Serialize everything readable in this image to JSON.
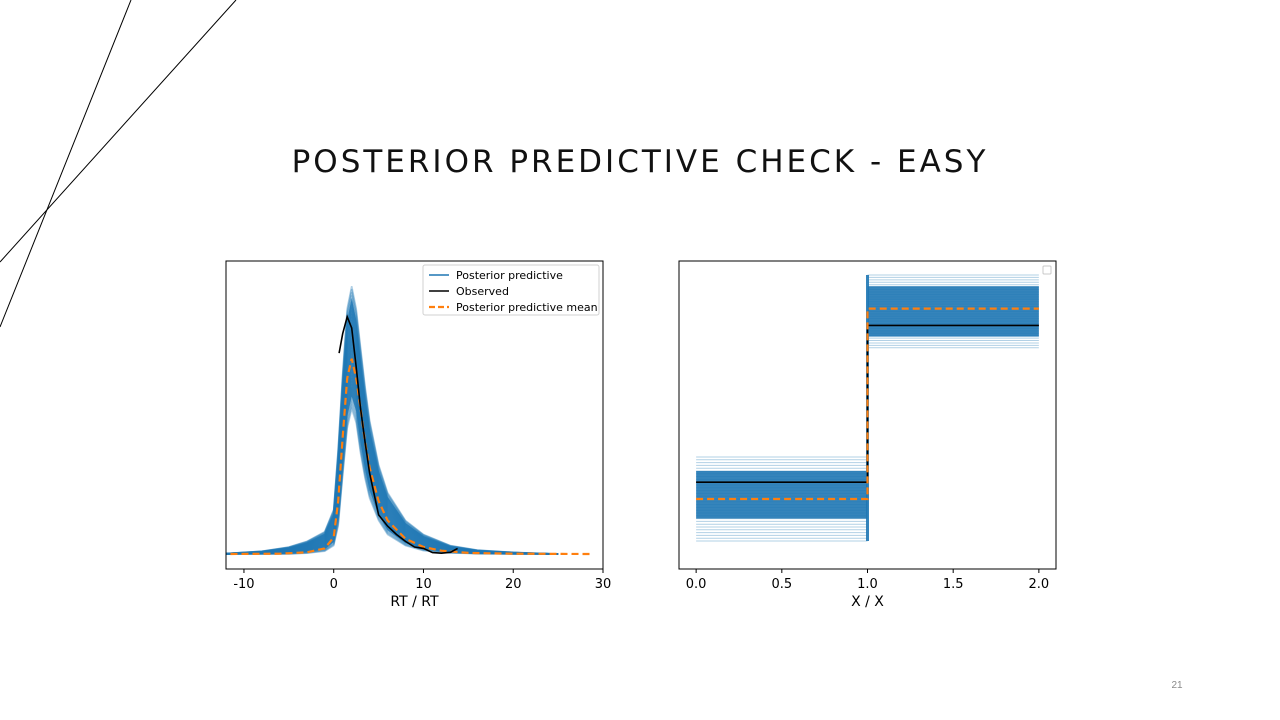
{
  "slide": {
    "title": "POSTERIOR PREDICTIVE CHECK - EASY",
    "page_number": "21"
  },
  "colors": {
    "posterior_predictive": "#1f77b4",
    "observed": "#000000",
    "posterior_mean": "#ff7f0e",
    "decoration_lines": "#000000"
  },
  "chart_data": [
    {
      "type": "line",
      "title": "",
      "xlabel": "RT / RT",
      "ylabel": "",
      "xlim": [
        -12,
        30
      ],
      "ylim": [
        0,
        1
      ],
      "x_ticks": [
        -10,
        0,
        10,
        20,
        30
      ],
      "grid": false,
      "legend": {
        "placement": "top-right",
        "entries": [
          "Posterior predictive",
          "Observed",
          "Posterior predictive mean"
        ]
      },
      "series": [
        {
          "name": "Posterior predictive mean",
          "style": "dashed",
          "x": [
            -11.5,
            -6,
            -3,
            -1,
            0,
            0.5,
            1,
            1.5,
            2,
            2.5,
            3,
            3.5,
            4,
            5,
            6,
            8,
            10,
            12,
            15,
            20,
            28.5
          ],
          "y": [
            0,
            0.001,
            0.006,
            0.02,
            0.06,
            0.19,
            0.42,
            0.63,
            0.7,
            0.63,
            0.52,
            0.4,
            0.31,
            0.19,
            0.12,
            0.055,
            0.025,
            0.012,
            0.004,
            0.001,
            0
          ]
        },
        {
          "name": "Observed",
          "style": "solid",
          "x": [
            0.6,
            1,
            1.5,
            2,
            2.5,
            3,
            3.5,
            4,
            5,
            6,
            7,
            8,
            9,
            10,
            11,
            12,
            13,
            13.8
          ],
          "y": [
            0.72,
            0.79,
            0.85,
            0.81,
            0.67,
            0.52,
            0.4,
            0.29,
            0.14,
            0.1,
            0.07,
            0.045,
            0.025,
            0.02,
            0.005,
            0.003,
            0.006,
            0.02
          ]
        }
      ],
      "posterior_predictive_band": {
        "x": [
          -12,
          -8,
          -5,
          -3,
          -1,
          0,
          0.5,
          1,
          1.5,
          2,
          2.5,
          3,
          3.5,
          4,
          5,
          6,
          8,
          10,
          13,
          16,
          20,
          25
        ],
        "lower": [
          0,
          0,
          0,
          0.003,
          0.01,
          0.03,
          0.1,
          0.28,
          0.45,
          0.52,
          0.47,
          0.36,
          0.27,
          0.2,
          0.12,
          0.07,
          0.03,
          0.012,
          0.004,
          0.001,
          0,
          0
        ],
        "upper": [
          0.002,
          0.01,
          0.025,
          0.045,
          0.08,
          0.16,
          0.38,
          0.65,
          0.88,
          0.96,
          0.88,
          0.74,
          0.6,
          0.48,
          0.32,
          0.22,
          0.12,
          0.07,
          0.03,
          0.014,
          0.006,
          0
        ]
      }
    },
    {
      "type": "line",
      "title": "",
      "xlabel": "X / X",
      "ylabel": "",
      "xlim": [
        -0.1,
        2.1
      ],
      "ylim": [
        0,
        1
      ],
      "x_ticks": [
        "0.0",
        "0.5",
        "1.0",
        "1.5",
        "2.0"
      ],
      "grid": false,
      "legend": {
        "placement": "top-right",
        "entries": []
      },
      "series": [
        {
          "name": "Observed",
          "style": "solid",
          "steps": [
            {
              "x0": 0,
              "x1": 1,
              "y": 0.26
            },
            {
              "x0": 1,
              "x1": 2,
              "y": 0.82
            }
          ]
        },
        {
          "name": "Posterior predictive mean",
          "style": "dashed",
          "steps": [
            {
              "x0": 0,
              "x1": 1,
              "y": 0.2
            },
            {
              "x0": 1,
              "x1": 2,
              "y": 0.88
            }
          ]
        }
      ],
      "posterior_predictive_band": {
        "steps": [
          {
            "x0": 0,
            "x1": 1,
            "lower": 0.05,
            "upper": 0.35,
            "core_lower": 0.13,
            "core_upper": 0.3
          },
          {
            "x0": 1,
            "x1": 2,
            "lower": 0.74,
            "upper": 1.0,
            "core_lower": 0.78,
            "core_upper": 0.96
          }
        ]
      }
    }
  ]
}
